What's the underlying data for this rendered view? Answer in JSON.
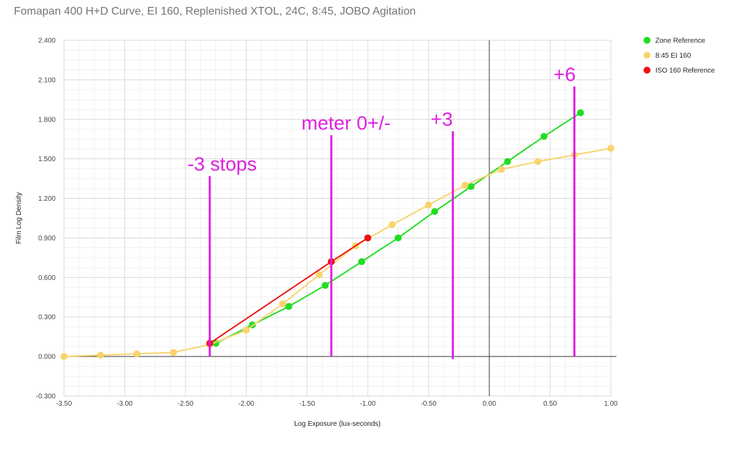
{
  "chart_data": {
    "type": "scatter",
    "title": "Fomapan 400 H+D Curve, EI 160, Replenished XTOL, 24C, 8:45, JOBO Agitation",
    "xlabel": "Log Exposure (lux-seconds)",
    "ylabel": "Film Log Density",
    "xlim": [
      -3.5,
      1.0
    ],
    "ylim": [
      -0.3,
      2.4
    ],
    "x_ticks": [
      -3.5,
      -3.0,
      -2.5,
      -2.0,
      -1.5,
      -1.0,
      -0.5,
      0.0,
      0.5,
      1.0
    ],
    "x_tick_labels": [
      "-3.50",
      "-3.00",
      "-2.50",
      "-2.00",
      "-1.50",
      "-1.00",
      "-0.50",
      "0.00",
      "0.50",
      "1.00"
    ],
    "y_ticks": [
      -0.3,
      0.0,
      0.3,
      0.6,
      0.9,
      1.2,
      1.5,
      1.8,
      2.1,
      2.4
    ],
    "y_tick_labels": [
      "-0.300",
      "0.000",
      "0.300",
      "0.600",
      "0.900",
      "1.200",
      "1.500",
      "1.800",
      "2.100",
      "2.400"
    ],
    "grid": true,
    "legend_position": "top-right",
    "series": [
      {
        "name": "Zone Reference",
        "color": "#22dd22",
        "x": [
          -2.25,
          -1.95,
          -1.65,
          -1.35,
          -1.05,
          -0.75,
          -0.45,
          -0.15,
          0.15,
          0.45,
          0.75
        ],
        "y": [
          0.1,
          0.24,
          0.38,
          0.54,
          0.72,
          0.9,
          1.1,
          1.29,
          1.48,
          1.67,
          1.85
        ]
      },
      {
        "name": "8:45 EI 160",
        "color": "#fad36e",
        "x": [
          -3.5,
          -3.2,
          -2.9,
          -2.6,
          -2.3,
          -2.0,
          -1.7,
          -1.4,
          -1.1,
          -0.8,
          -0.5,
          -0.2,
          0.1,
          0.4,
          0.7,
          1.0
        ],
        "y": [
          0.0,
          0.01,
          0.02,
          0.03,
          0.09,
          0.2,
          0.4,
          0.62,
          0.84,
          1.0,
          1.15,
          1.3,
          1.42,
          1.48,
          1.53,
          1.58
        ]
      },
      {
        "name": "ISO 160 Reference",
        "color": "#ee1111",
        "x": [
          -2.3,
          -1.3,
          -1.0
        ],
        "y": [
          0.1,
          0.72,
          0.9
        ]
      }
    ],
    "annotations": [
      {
        "text": "-3 stops",
        "x": -2.3,
        "y_from": 0.0,
        "y_to": 1.37
      },
      {
        "text": "meter 0+/-",
        "x": -1.3,
        "y_from": 0.0,
        "y_to": 1.68
      },
      {
        "text": "+3",
        "x": -0.3,
        "y_from": -0.02,
        "y_to": 1.71
      },
      {
        "text": "+6",
        "x": 0.7,
        "y_from": 0.0,
        "y_to": 2.05
      }
    ],
    "annotation_color": "#e020e0"
  }
}
